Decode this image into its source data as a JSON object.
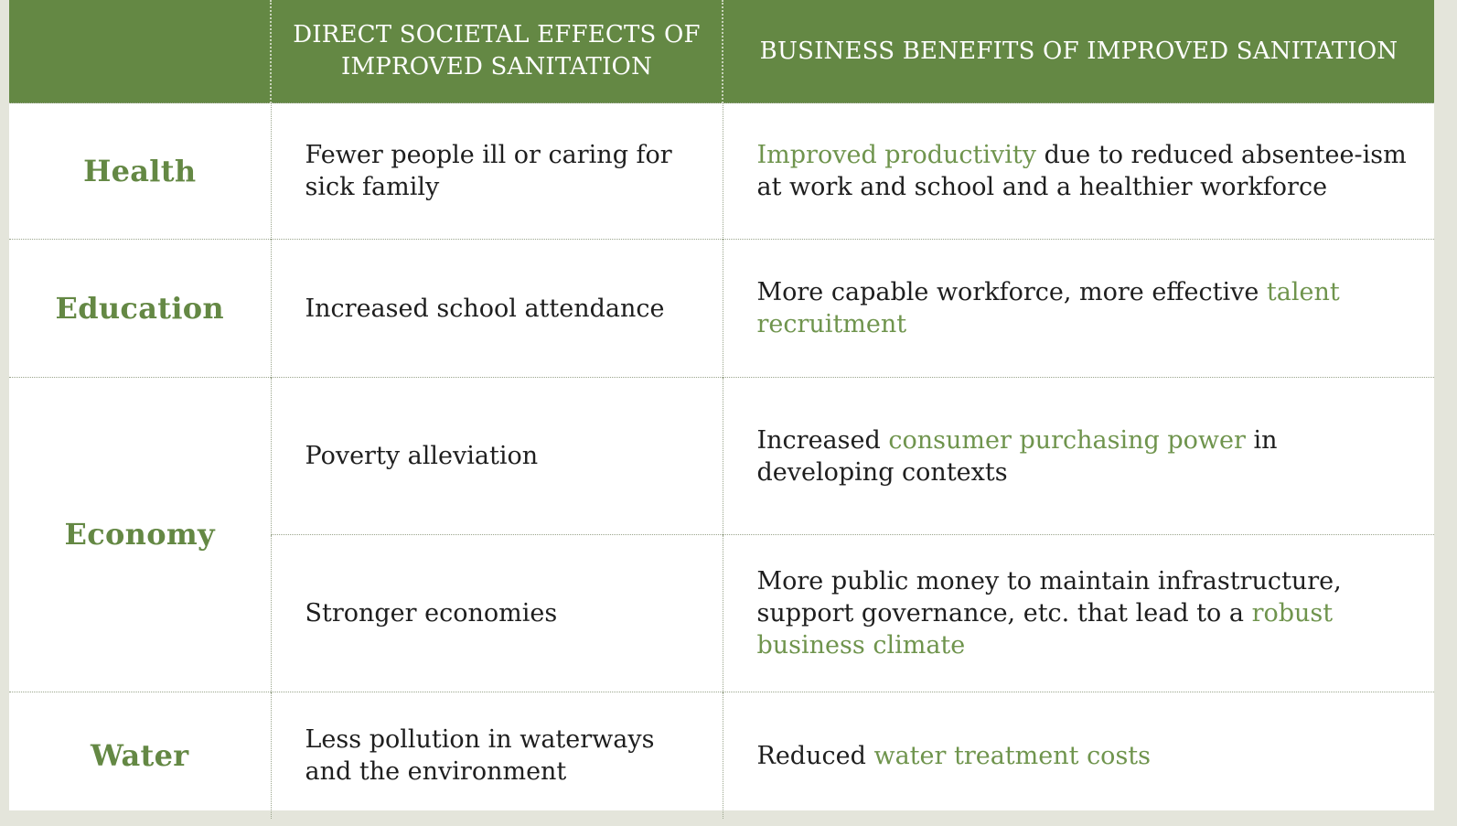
{
  "header": {
    "col1": "",
    "col2": "DIRECT SOCIETAL EFFECTS OF IMPROVED SANITATION",
    "col3": "BUSINESS BENEFITS OF IMPROVED SANITATION"
  },
  "rows": {
    "health": {
      "category": "Health",
      "effect": "Fewer people ill or caring for sick family",
      "benefit": {
        "hl1": "Improved productivity",
        "t1": " due to reduced absentee-ism at work and school and a healthier workforce"
      }
    },
    "education": {
      "category": "Education",
      "effect": "Increased school attendance",
      "benefit": {
        "t1": "More capable workforce, more effective ",
        "hl1": "talent recruitment"
      }
    },
    "economy": {
      "category": "Economy",
      "effect1": "Poverty alleviation",
      "benefit1": {
        "t1": "Increased ",
        "hl1": "consumer purchasing power",
        "t2": " in developing contexts"
      },
      "effect2": "Stronger economies",
      "benefit2": {
        "t1": "More public money to maintain infrastructure, support governance, etc. that lead to a ",
        "hl1": "robust business climate"
      }
    },
    "water": {
      "category": "Water",
      "effect": "Less pollution in waterways and the environment",
      "benefit": {
        "t1": "Reduced ",
        "hl1": "water treatment costs"
      }
    }
  },
  "colors": {
    "header_bg": "#648844",
    "accent_text": "#6f944d",
    "body_text": "#1e1e1e"
  }
}
